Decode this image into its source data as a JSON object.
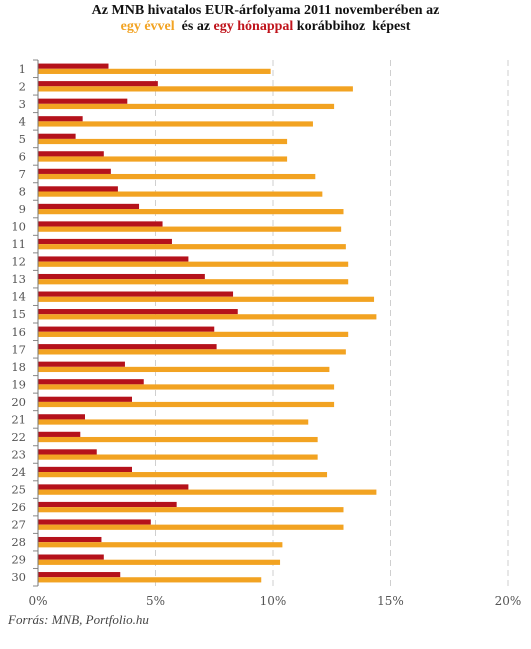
{
  "title": {
    "line1": "Az MNB hivatalos EUR-árfolyama  2011 novemberében  az",
    "line2_part1": "egy évvel",
    "line2_part2": "  és az ",
    "line2_part3": "egy hónappal",
    "line2_part4": " korábbihoz  képest"
  },
  "source": "Forrás: MNB, Portfolio.hu",
  "colors": {
    "year": "#f2a322",
    "month": "#b5121b",
    "grid": "#cfcfcf"
  },
  "chart_data": {
    "type": "bar",
    "orientation": "horizontal",
    "categories": [
      "1",
      "2",
      "3",
      "4",
      "5",
      "6",
      "7",
      "8",
      "9",
      "10",
      "11",
      "12",
      "13",
      "14",
      "15",
      "16",
      "17",
      "18",
      "19",
      "20",
      "21",
      "22",
      "23",
      "24",
      "25",
      "26",
      "27",
      "28",
      "29",
      "30"
    ],
    "series": [
      {
        "name": "egy hónappal",
        "values": [
          3.0,
          5.1,
          3.8,
          1.9,
          1.6,
          2.8,
          3.1,
          3.4,
          4.3,
          5.3,
          5.7,
          6.4,
          7.1,
          8.3,
          8.5,
          7.5,
          7.6,
          3.7,
          4.5,
          4.0,
          2.0,
          1.8,
          2.5,
          4.0,
          6.4,
          5.9,
          4.8,
          2.7,
          2.8,
          3.5
        ]
      },
      {
        "name": "egy évvel",
        "values": [
          9.9,
          13.4,
          12.6,
          11.7,
          10.6,
          10.6,
          11.8,
          12.1,
          13.0,
          12.9,
          13.1,
          13.2,
          13.2,
          14.3,
          14.4,
          13.2,
          13.1,
          12.4,
          12.6,
          12.6,
          11.5,
          11.9,
          11.9,
          12.3,
          14.4,
          13.0,
          13.0,
          10.4,
          10.3,
          9.5
        ]
      }
    ],
    "xlim": [
      0,
      20
    ],
    "xticks": [
      "0%",
      "5%",
      "10%",
      "15%",
      "20%"
    ],
    "grid": "vertical dashed"
  }
}
